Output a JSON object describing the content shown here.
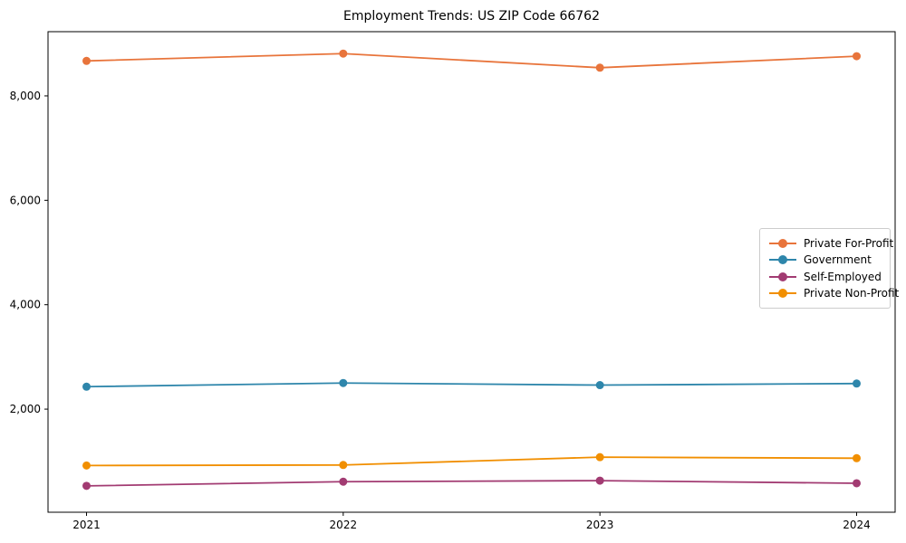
{
  "title": "Employment Trends: US ZIP Code 66762",
  "chart_data": {
    "type": "line",
    "title": "Employment Trends: US ZIP Code 66762",
    "xlabel": "",
    "ylabel": "",
    "x": [
      2021,
      2022,
      2023,
      2024
    ],
    "x_tick_labels": [
      "2021",
      "2022",
      "2023",
      "2024"
    ],
    "series": [
      {
        "name": "Private For-Profit",
        "color": "#E8743B",
        "values": [
          8670,
          8810,
          8540,
          8760
        ]
      },
      {
        "name": "Government",
        "color": "#2E86AB",
        "values": [
          2430,
          2500,
          2460,
          2490
        ]
      },
      {
        "name": "Self-Employed",
        "color": "#A23B72",
        "values": [
          530,
          610,
          630,
          580
        ]
      },
      {
        "name": "Private Non-Profit",
        "color": "#F18F01",
        "values": [
          920,
          930,
          1080,
          1060
        ]
      }
    ],
    "xlim": [
      2020.85,
      2024.15
    ],
    "ylim": [
      25,
      9230
    ],
    "yticks": {
      "values": [
        2000,
        4000,
        6000,
        8000
      ],
      "labels": [
        "2,000",
        "4,000",
        "6,000",
        "8,000"
      ]
    },
    "grid": false,
    "legend_position": "right-middle",
    "spine_color": "#000000",
    "marker": "circle"
  }
}
